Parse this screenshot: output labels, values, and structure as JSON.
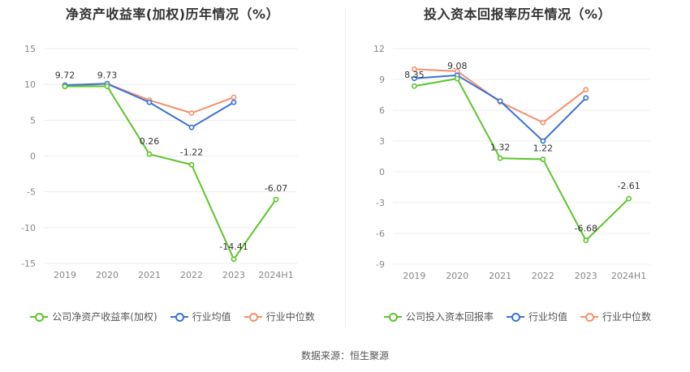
{
  "chart_data": [
    {
      "type": "line",
      "title": "净资产收益率(加权)历年情况（%）",
      "categories": [
        "2019",
        "2020",
        "2021",
        "2022",
        "2023",
        "2024H1"
      ],
      "ylim": [
        -15,
        15
      ],
      "yticks": [
        15,
        10,
        5,
        0,
        -5,
        -10,
        -15
      ],
      "grid": true,
      "legend_position": "bottom",
      "series": [
        {
          "name": "公司净资产收益率(加权)",
          "color": "#5bc62a",
          "values": [
            9.72,
            9.73,
            0.26,
            -1.22,
            -14.41,
            -6.07
          ],
          "labels": [
            "9.72",
            "9.73",
            "0.26",
            "-1.22",
            "-14.41",
            "-6.07"
          ]
        },
        {
          "name": "行业均值",
          "color": "#3a72d8",
          "values": [
            9.9,
            10.1,
            7.5,
            4.0,
            7.5,
            null
          ]
        },
        {
          "name": "行业中位数",
          "color": "#f5906a",
          "values": [
            9.7,
            10.1,
            7.8,
            6.0,
            8.2,
            null
          ]
        }
      ]
    },
    {
      "type": "line",
      "title": "投入资本回报率历年情况（%）",
      "categories": [
        "2019",
        "2020",
        "2021",
        "2022",
        "2023",
        "2024H1"
      ],
      "ylim": [
        -9,
        12
      ],
      "yticks": [
        12,
        9,
        6,
        3,
        0,
        -3,
        -6,
        -9
      ],
      "grid": true,
      "legend_position": "bottom",
      "series": [
        {
          "name": "公司投入资本回报率",
          "color": "#5bc62a",
          "values": [
            8.35,
            9.08,
            1.32,
            1.22,
            -6.68,
            -2.61
          ],
          "labels": [
            "8.35",
            "9.08",
            "1.32",
            "1.22",
            "-6.68",
            "-2.61"
          ]
        },
        {
          "name": "行业均值",
          "color": "#3a72d8",
          "values": [
            9.1,
            9.4,
            6.9,
            3.0,
            7.2,
            null
          ]
        },
        {
          "name": "行业中位数",
          "color": "#f5906a",
          "values": [
            10.0,
            9.8,
            6.8,
            4.8,
            8.0,
            null
          ]
        }
      ]
    }
  ],
  "footer": {
    "source": "数据来源：恒生聚源"
  }
}
